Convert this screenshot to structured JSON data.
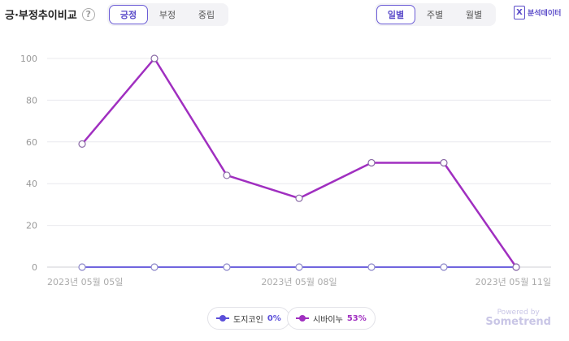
{
  "header": {
    "title": "긍·부정추이비교",
    "help_glyph": "?",
    "sentiment_tabs": [
      "긍정",
      "부정",
      "중립"
    ],
    "sentiment_active": 0,
    "period_tabs": [
      "일별",
      "주별",
      "월별"
    ],
    "period_active": 0,
    "excel_glyph": "X",
    "excel_label": "분석데이터"
  },
  "chart_data": {
    "type": "line",
    "x": [
      "2023-05-05",
      "2023-05-06",
      "2023-05-07",
      "2023-05-08",
      "2023-05-09",
      "2023-05-10",
      "2023-05-11"
    ],
    "x_tick_labels": [
      "2023년 05월 05일",
      "2023년 05월 08일",
      "2023년 05월 11일"
    ],
    "x_tick_indices": [
      0,
      3,
      6
    ],
    "ylim": [
      0,
      100
    ],
    "yticks": [
      0,
      20,
      40,
      60,
      80,
      100
    ],
    "grid": true,
    "legend_position": "bottom",
    "series": [
      {
        "name": "도지코인",
        "share": "0%",
        "color": "#5b4fd9",
        "values": [
          0,
          0,
          0,
          0,
          0,
          0,
          0
        ]
      },
      {
        "name": "시바이누",
        "share": "53%",
        "color": "#a02fc0",
        "values": [
          59,
          100,
          44,
          33,
          50,
          50,
          0
        ]
      }
    ]
  },
  "watermark": {
    "powered": "Powered by",
    "brand": "Sometrend"
  }
}
